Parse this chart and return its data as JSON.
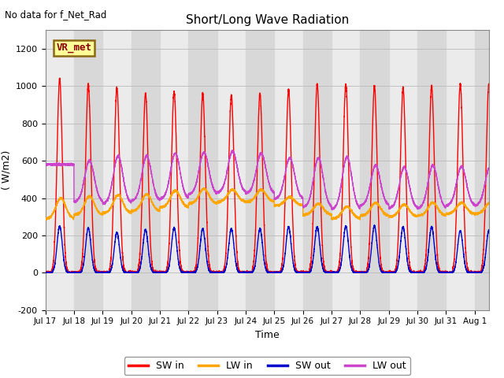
{
  "title": "Short/Long Wave Radiation",
  "top_left_text": "No data for f_Net_Rad",
  "ylabel": "( W/m2)",
  "xlabel": "Time",
  "ylim": [
    -200,
    1300
  ],
  "yticks": [
    -200,
    0,
    200,
    400,
    600,
    800,
    1000,
    1200
  ],
  "background_color": "#ffffff",
  "plot_bg_color": "#d8d8d8",
  "white_band_color": "#ebebeb",
  "legend_box_label": "VR_met",
  "legend_box_bg": "#ffff99",
  "legend_box_border": "#8B6914",
  "legend_entries": [
    "SW in",
    "LW in",
    "SW out",
    "LW out"
  ],
  "line_colors": [
    "#ff0000",
    "#ffa500",
    "#0000cc",
    "#cc44cc"
  ],
  "xtick_labels": [
    "Jul 17",
    "Jul 18",
    "Jul 19",
    "Jul 20",
    "Jul 21",
    "Jul 22",
    "Jul 23",
    "Jul 24",
    "Jul 25",
    "Jul 26",
    "Jul 27",
    "Jul 28",
    "Jul 29",
    "Jul 30",
    "Jul 31",
    "Aug 1"
  ],
  "n_days": 15.5,
  "SW_in_peaks": [
    1040,
    1010,
    990,
    960,
    970,
    960,
    950,
    960,
    980,
    1010,
    1010,
    1000,
    990,
    1000,
    1010
  ],
  "LW_in_base": [
    290,
    310,
    320,
    330,
    350,
    370,
    380,
    380,
    360,
    310,
    290,
    305,
    300,
    305,
    315
  ],
  "LW_in_peaks": [
    400,
    410,
    415,
    420,
    440,
    450,
    445,
    445,
    405,
    370,
    355,
    375,
    365,
    375,
    375
  ],
  "SW_out_peaks": [
    250,
    240,
    215,
    230,
    240,
    235,
    235,
    235,
    245,
    245,
    250,
    250,
    245,
    245,
    225
  ],
  "LW_out_base": [
    580,
    380,
    370,
    385,
    395,
    420,
    430,
    425,
    395,
    350,
    340,
    360,
    345,
    345,
    360
  ],
  "LW_out_peaks": [
    580,
    600,
    625,
    625,
    640,
    645,
    650,
    640,
    615,
    615,
    620,
    575,
    565,
    575,
    570
  ]
}
